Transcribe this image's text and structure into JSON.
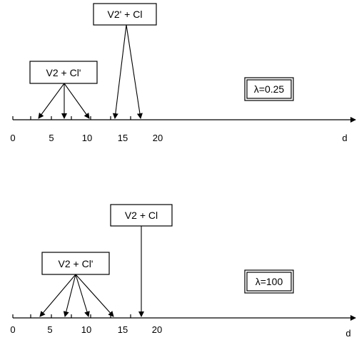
{
  "panels": [
    {
      "id": "top",
      "axis_label": "d",
      "ticks": [
        "0",
        "5",
        "10",
        "15",
        "20"
      ],
      "lambda_label": "λ=0.25",
      "boxes": [
        {
          "label": "V2' + Cl"
        },
        {
          "label": "V2 + Cl'"
        }
      ]
    },
    {
      "id": "bottom",
      "axis_label": "d",
      "ticks": [
        "0",
        "5",
        "10",
        "15",
        "20"
      ],
      "lambda_label": "λ=100",
      "boxes": [
        {
          "label": "V2 + Cl"
        },
        {
          "label": "V2 + Cl'"
        }
      ]
    }
  ]
}
